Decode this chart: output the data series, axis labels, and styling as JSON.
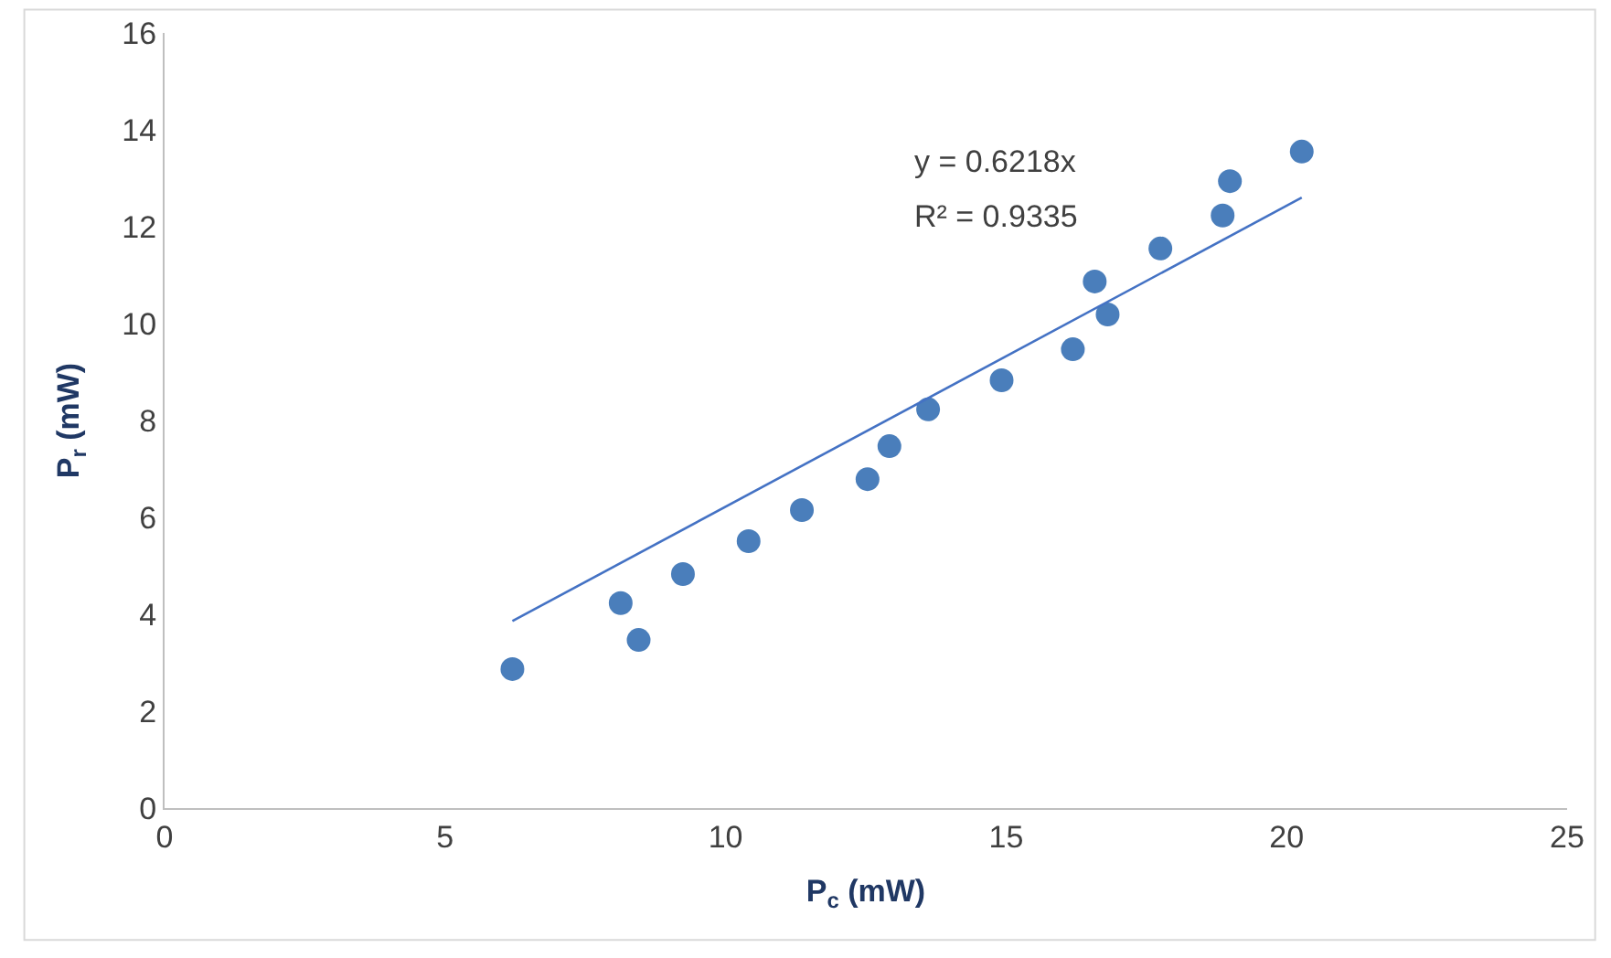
{
  "chart_data": {
    "type": "scatter",
    "xlabel": "P$_{c}$ (mW)",
    "ylabel": "P$_{r}$ (mW)",
    "xlim": [
      0,
      25
    ],
    "xticks": [
      0,
      5,
      10,
      15,
      20,
      25
    ],
    "ylim": [
      0,
      16
    ],
    "yticks": [
      0,
      2,
      4,
      6,
      8,
      10,
      12,
      14,
      16
    ],
    "grid": false,
    "marker": "circle",
    "series": [
      {
        "color": "#4a7ebb",
        "x": [
          6.2,
          8.13,
          8.45,
          9.24,
          10.41,
          11.36,
          12.53,
          12.92,
          13.61,
          14.92,
          16.19,
          16.58,
          16.81,
          17.75,
          18.86,
          18.99,
          20.27
        ],
        "values": [
          2.87,
          4.23,
          3.47,
          4.83,
          5.51,
          6.15,
          6.79,
          7.47,
          8.23,
          8.83,
          9.47,
          10.87,
          10.19,
          11.55,
          12.23,
          12.94,
          13.55
        ]
      },
      {
        "type": "line",
        "color": "#4472c4",
        "line_style": "solid",
        "marker": "none",
        "x": [
          6.2,
          20.27
        ],
        "values": [
          3.86,
          12.6
        ]
      }
    ],
    "annotations": [
      "y = 0.6218x",
      "R² = 0.9335"
    ]
  }
}
